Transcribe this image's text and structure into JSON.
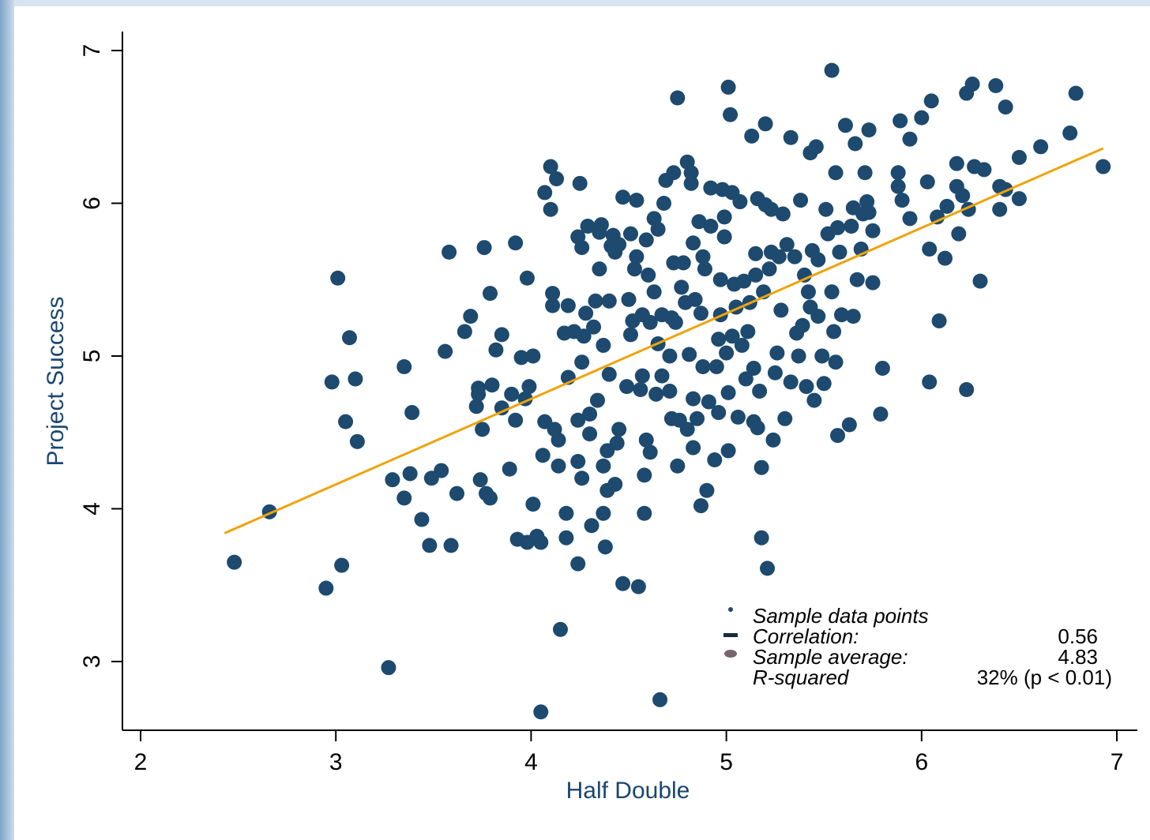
{
  "chart_data": {
    "type": "scatter",
    "x_label": "Half Double",
    "y_label": "Project Success",
    "xlim": [
      1.907,
      7.105
    ],
    "ylim": [
      2.55,
      7.124
    ],
    "xticks": [
      2,
      3,
      4,
      5,
      6,
      7
    ],
    "yticks": [
      3,
      4,
      5,
      6,
      7
    ],
    "x": [
      2.48,
      2.66,
      2.95,
      3.03,
      3.01,
      2.98,
      3.05,
      3.07,
      3.1,
      3.11,
      3.27,
      3.29,
      3.35,
      3.35,
      3.38,
      3.39,
      3.44,
      3.48,
      3.49,
      3.54,
      3.56,
      3.58,
      3.59,
      3.62,
      3.66,
      3.69,
      3.72,
      3.73,
      3.73,
      3.74,
      3.75,
      3.76,
      3.77,
      3.79,
      3.79,
      3.8,
      3.82,
      3.85,
      3.85,
      3.89,
      3.9,
      3.92,
      3.92,
      3.93,
      3.95,
      3.97,
      3.98,
      3.98,
      3.99,
      4.01,
      4.01,
      4.03,
      4.05,
      4.05,
      4.06,
      4.07,
      4.07,
      4.1,
      4.1,
      4.11,
      4.11,
      4.12,
      4.13,
      4.14,
      4.14,
      4.15,
      4.17,
      4.18,
      4.18,
      4.19,
      4.19,
      4.22,
      4.24,
      4.24,
      4.24,
      4.24,
      4.25,
      4.26,
      4.26,
      4.26,
      4.27,
      4.28,
      4.29,
      4.3,
      4.3,
      4.31,
      4.32,
      4.33,
      4.34,
      4.35,
      4.35,
      4.36,
      4.37,
      4.37,
      4.37,
      4.38,
      4.39,
      4.39,
      4.4,
      4.4,
      4.41,
      4.42,
      4.43,
      4.43,
      4.44,
      4.45,
      4.45,
      4.47,
      4.47,
      4.49,
      4.5,
      4.51,
      4.51,
      4.52,
      4.53,
      4.54,
      4.54,
      4.55,
      4.56,
      4.57,
      4.57,
      4.58,
      4.58,
      4.59,
      4.59,
      4.6,
      4.61,
      4.61,
      4.63,
      4.63,
      4.64,
      4.65,
      4.65,
      4.66,
      4.67,
      4.67,
      4.68,
      4.69,
      4.71,
      4.71,
      4.72,
      4.72,
      4.73,
      4.73,
      4.74,
      4.75,
      4.75,
      4.76,
      4.77,
      4.78,
      4.79,
      4.8,
      4.8,
      4.81,
      4.82,
      4.82,
      4.83,
      4.83,
      4.83,
      4.84,
      4.85,
      4.86,
      4.87,
      4.87,
      4.88,
      4.88,
      4.89,
      4.9,
      4.91,
      4.92,
      4.92,
      4.94,
      4.95,
      4.96,
      4.96,
      4.97,
      4.97,
      4.98,
      4.99,
      4.99,
      5.0,
      5.01,
      5.01,
      5.01,
      5.02,
      5.03,
      5.03,
      5.04,
      5.05,
      5.06,
      5.07,
      5.08,
      5.09,
      5.1,
      5.11,
      5.12,
      5.13,
      5.14,
      5.14,
      5.15,
      5.15,
      5.16,
      5.16,
      5.17,
      5.18,
      5.18,
      5.19,
      5.2,
      5.2,
      5.21,
      5.22,
      5.23,
      5.23,
      5.24,
      5.25,
      5.26,
      5.27,
      5.28,
      5.29,
      5.3,
      5.31,
      5.33,
      5.33,
      5.35,
      5.36,
      5.37,
      5.38,
      5.39,
      5.4,
      5.41,
      5.42,
      5.43,
      5.43,
      5.44,
      5.45,
      5.46,
      5.47,
      5.47,
      5.49,
      5.5,
      5.51,
      5.52,
      5.54,
      5.54,
      5.55,
      5.56,
      5.56,
      5.57,
      5.57,
      5.58,
      5.59,
      5.61,
      5.63,
      5.64,
      5.65,
      5.65,
      5.66,
      5.67,
      5.69,
      5.7,
      5.71,
      5.72,
      5.73,
      5.73,
      5.75,
      5.75,
      5.79,
      5.8,
      5.88,
      5.88,
      5.89,
      5.9,
      5.94,
      5.94,
      6.0,
      6.03,
      6.04,
      6.04,
      6.05,
      6.08,
      6.09,
      6.12,
      6.13,
      6.18,
      6.18,
      6.19,
      6.21,
      6.23,
      6.23,
      6.24,
      6.26,
      6.27,
      6.3,
      6.32,
      6.38,
      6.4,
      6.4,
      6.43,
      6.43,
      6.5,
      6.5,
      6.61,
      6.76,
      6.79,
      6.93
    ],
    "series": [
      {
        "name": "Sample data points",
        "color": "#1d4a6e",
        "values": [
          3.65,
          3.98,
          3.48,
          3.63,
          5.51,
          4.83,
          4.57,
          5.12,
          4.85,
          4.44,
          2.96,
          4.19,
          4.93,
          4.07,
          4.23,
          4.63,
          3.93,
          3.76,
          4.2,
          4.25,
          5.03,
          5.68,
          3.76,
          4.1,
          5.16,
          5.26,
          4.67,
          4.79,
          4.75,
          4.19,
          4.52,
          5.71,
          4.1,
          4.07,
          5.41,
          4.81,
          5.04,
          4.66,
          5.14,
          4.26,
          4.75,
          4.58,
          5.74,
          3.8,
          4.99,
          4.72,
          5.51,
          3.78,
          4.8,
          4.03,
          5.0,
          3.82,
          3.78,
          2.67,
          4.35,
          4.57,
          6.07,
          6.24,
          5.96,
          5.33,
          5.41,
          4.52,
          6.16,
          4.28,
          4.45,
          3.21,
          5.15,
          3.97,
          3.81,
          4.86,
          5.33,
          5.16,
          4.58,
          3.64,
          4.31,
          5.78,
          6.13,
          5.71,
          4.2,
          4.96,
          5.13,
          5.28,
          5.85,
          4.62,
          4.49,
          3.89,
          5.19,
          5.36,
          4.71,
          5.81,
          5.57,
          5.86,
          5.07,
          4.28,
          3.97,
          3.75,
          4.12,
          4.38,
          4.88,
          5.36,
          5.72,
          5.79,
          4.16,
          5.68,
          4.43,
          5.73,
          4.52,
          3.51,
          6.04,
          4.8,
          5.37,
          5.8,
          5.14,
          5.23,
          5.57,
          5.65,
          6.02,
          3.49,
          4.78,
          4.87,
          5.27,
          4.22,
          3.97,
          4.45,
          5.76,
          5.53,
          4.37,
          5.22,
          5.42,
          5.9,
          4.75,
          5.83,
          5.08,
          2.75,
          4.87,
          5.27,
          6.0,
          6.15,
          5.0,
          4.77,
          5.25,
          4.59,
          6.2,
          5.61,
          5.22,
          6.69,
          4.28,
          4.58,
          5.45,
          5.61,
          5.35,
          6.27,
          4.52,
          5.01,
          6.2,
          6.13,
          4.72,
          5.74,
          4.4,
          5.37,
          4.59,
          5.88,
          4.02,
          5.28,
          5.65,
          4.93,
          5.57,
          4.12,
          4.7,
          6.1,
          5.85,
          4.32,
          4.93,
          5.11,
          4.63,
          5.5,
          5.27,
          6.09,
          5.91,
          5.78,
          5.02,
          4.38,
          6.76,
          4.76,
          6.58,
          5.13,
          6.07,
          5.47,
          5.32,
          4.6,
          6.01,
          5.07,
          5.49,
          4.85,
          5.16,
          5.35,
          6.44,
          4.57,
          4.92,
          5.67,
          5.53,
          6.03,
          4.53,
          4.77,
          3.81,
          4.27,
          5.42,
          5.99,
          6.52,
          3.61,
          5.57,
          5.68,
          5.96,
          4.45,
          4.89,
          5.02,
          5.65,
          5.3,
          5.93,
          4.59,
          5.73,
          6.43,
          4.83,
          5.65,
          5.15,
          5.0,
          6.02,
          5.2,
          5.53,
          4.8,
          5.42,
          5.32,
          6.33,
          5.69,
          4.71,
          6.37,
          5.63,
          5.26,
          5.0,
          4.82,
          5.96,
          5.8,
          6.87,
          5.42,
          5.16,
          6.2,
          4.96,
          4.48,
          5.84,
          5.68,
          5.27,
          6.51,
          4.55,
          5.85,
          5.97,
          5.26,
          6.39,
          5.5,
          5.7,
          5.93,
          6.2,
          6.01,
          6.48,
          5.94,
          5.82,
          5.48,
          4.62,
          4.92,
          6.11,
          6.2,
          6.54,
          6.02,
          5.9,
          6.42,
          6.56,
          6.14,
          5.7,
          4.83,
          6.67,
          5.91,
          5.23,
          5.64,
          5.98,
          6.11,
          6.26,
          5.8,
          6.05,
          4.78,
          6.72,
          5.96,
          6.78,
          6.24,
          5.49,
          6.22,
          6.77,
          6.11,
          5.96,
          6.63,
          6.09,
          6.3,
          6.03,
          6.37,
          6.46,
          6.72,
          6.24
        ]
      }
    ],
    "trendline": {
      "color": "#f0a30a",
      "x": [
        2.43,
        6.93
      ],
      "y": [
        3.84,
        6.36
      ]
    },
    "stats": [
      {
        "label": "Correlation:",
        "value": 0.56
      },
      {
        "label": "Sample average:",
        "value": 4.83
      },
      {
        "label": "R-squared",
        "value": 32,
        "value_label": "32% (p < 0.01)"
      }
    ]
  }
}
